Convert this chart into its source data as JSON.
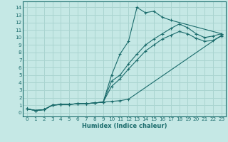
{
  "xlabel": "Humidex (Indice chaleur)",
  "ylabel": "",
  "bg_color": "#c5e8e5",
  "line_color": "#1a6b6b",
  "grid_color": "#aad4d0",
  "xlim": [
    -0.5,
    23.5
  ],
  "ylim": [
    -0.5,
    14.8
  ],
  "xticks": [
    0,
    1,
    2,
    3,
    4,
    5,
    6,
    7,
    8,
    9,
    10,
    11,
    12,
    13,
    14,
    15,
    16,
    17,
    18,
    19,
    20,
    21,
    22,
    23
  ],
  "yticks": [
    0,
    1,
    2,
    3,
    4,
    5,
    6,
    7,
    8,
    9,
    10,
    11,
    12,
    13,
    14
  ],
  "lines": [
    {
      "x": [
        0,
        1,
        2,
        3,
        4,
        5,
        6,
        7,
        8,
        9,
        10,
        11,
        12,
        13,
        14,
        15,
        16,
        17,
        23
      ],
      "y": [
        0.5,
        0.3,
        0.4,
        1.0,
        1.1,
        1.1,
        1.2,
        1.2,
        1.3,
        1.4,
        5.0,
        7.8,
        9.5,
        14.0,
        13.3,
        13.5,
        12.7,
        12.3,
        10.5
      ]
    },
    {
      "x": [
        0,
        1,
        2,
        3,
        4,
        5,
        6,
        7,
        8,
        9,
        10,
        11,
        12,
        13,
        14,
        15,
        16,
        17,
        18,
        19,
        20,
        21,
        22,
        23
      ],
      "y": [
        0.5,
        0.3,
        0.4,
        1.0,
        1.1,
        1.1,
        1.2,
        1.2,
        1.3,
        1.4,
        4.2,
        5.0,
        6.5,
        7.8,
        9.0,
        9.8,
        10.5,
        11.2,
        11.8,
        11.3,
        10.5,
        10.0,
        10.2,
        10.5
      ]
    },
    {
      "x": [
        0,
        1,
        2,
        3,
        4,
        5,
        6,
        7,
        8,
        9,
        10,
        11,
        12,
        13,
        14,
        15,
        16,
        17,
        18,
        19,
        20,
        21,
        22,
        23
      ],
      "y": [
        0.5,
        0.3,
        0.4,
        1.0,
        1.1,
        1.1,
        1.2,
        1.2,
        1.3,
        1.4,
        3.5,
        4.5,
        5.8,
        7.0,
        8.2,
        9.0,
        9.8,
        10.3,
        10.8,
        10.5,
        9.9,
        9.5,
        9.6,
        10.2
      ]
    },
    {
      "x": [
        0,
        1,
        2,
        3,
        4,
        5,
        6,
        7,
        8,
        9,
        10,
        11,
        12,
        23
      ],
      "y": [
        0.5,
        0.3,
        0.4,
        1.0,
        1.1,
        1.1,
        1.2,
        1.2,
        1.3,
        1.4,
        1.5,
        1.6,
        1.8,
        10.3
      ]
    }
  ]
}
